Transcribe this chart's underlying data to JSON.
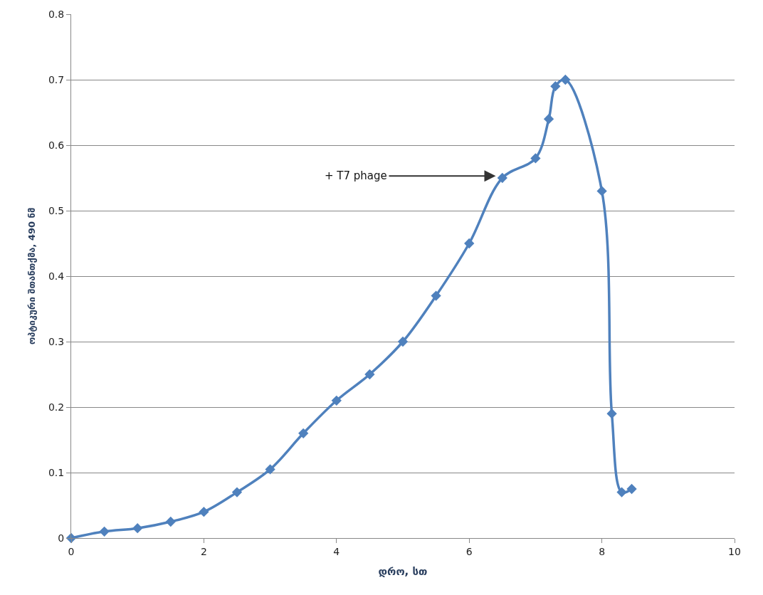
{
  "chart_data": {
    "type": "line",
    "xlabel": "დრო, სთ",
    "ylabel": "ოპტიკური შთანთქმა, 490 ნმ",
    "x": [
      0,
      0.5,
      1,
      1.5,
      2,
      2.5,
      3,
      3.5,
      4,
      4.5,
      5,
      5.5,
      6,
      6.5,
      7,
      7.2,
      7.3,
      7.45,
      8,
      8.15,
      8.3,
      8.45
    ],
    "series": [
      {
        "color": "#4f81bd",
        "values": [
          0,
          0.01,
          0.015,
          0.025,
          0.04,
          0.07,
          0.105,
          0.16,
          0.21,
          0.25,
          0.3,
          0.37,
          0.45,
          0.55,
          0.58,
          0.64,
          0.69,
          0.7,
          0.53,
          0.19,
          0.07,
          0.075
        ]
      }
    ],
    "xlim": [
      0,
      10
    ],
    "xticks": [
      0,
      2,
      4,
      6,
      8,
      10
    ],
    "ylim": [
      0,
      0.8
    ],
    "yticks": [
      0,
      0.1,
      0.2,
      0.3,
      0.4,
      0.5,
      0.6,
      0.7,
      0.8
    ],
    "annotations": [
      {
        "text": "+ T7 phage",
        "x": 6.4,
        "y": 0.553
      }
    ],
    "grid": "y",
    "legend": false,
    "marker": "diamond",
    "line_style": "solid"
  }
}
